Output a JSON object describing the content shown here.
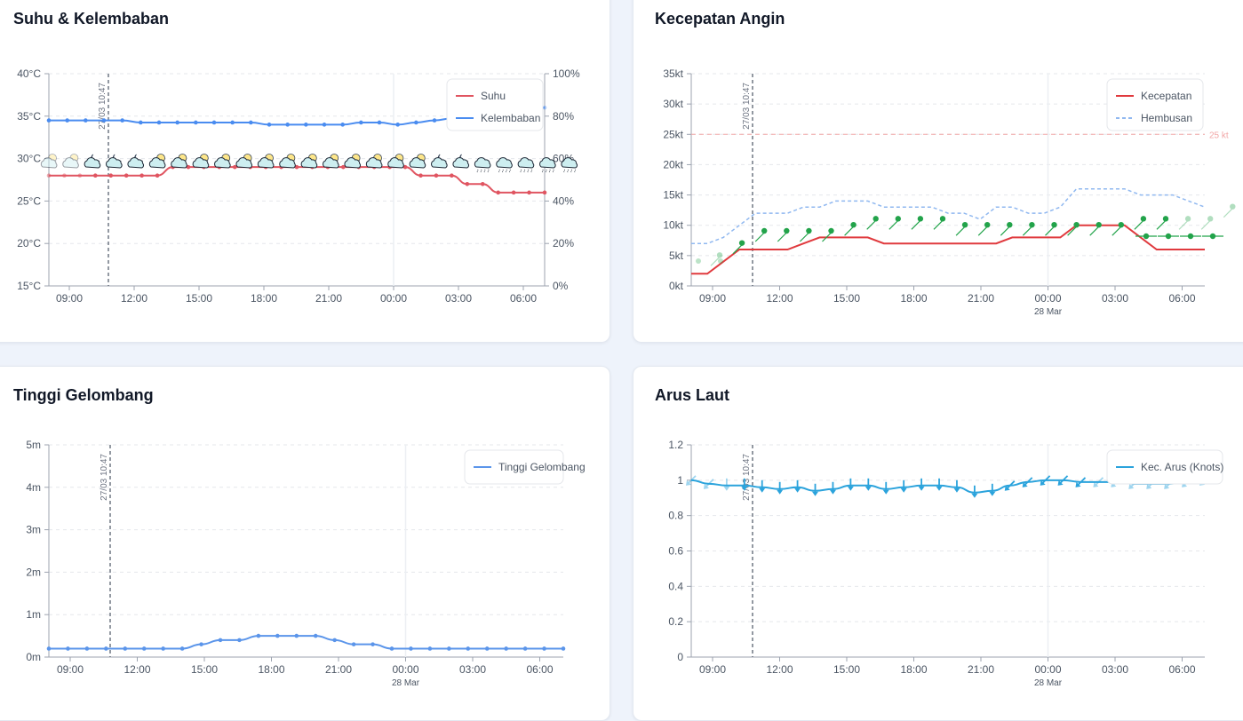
{
  "chart_data": [
    {
      "id": "temp",
      "type": "line",
      "title": "Suhu & Kelembaban",
      "x_ticks": [
        "09:00",
        "12:00",
        "15:00",
        "18:00",
        "21:00",
        "00:00",
        "03:00",
        "06:00"
      ],
      "y_left": {
        "ticks": [
          "15°C",
          "20°C",
          "25°C",
          "30°C",
          "35°C",
          "40°C"
        ],
        "range": [
          15,
          40
        ]
      },
      "y_right": {
        "ticks": [
          "0%",
          "20%",
          "40%",
          "60%",
          "80%",
          "100%"
        ],
        "range": [
          0,
          100
        ]
      },
      "now_label": "27/03 10:47",
      "legend": [
        "Suhu",
        "Kelembaban"
      ],
      "series": [
        {
          "name": "Suhu",
          "color": "#e05561",
          "axis": "left",
          "values": [
            28,
            28,
            28,
            28,
            28,
            28,
            28,
            28,
            29,
            29,
            29,
            29,
            29,
            29,
            29,
            29,
            29,
            29,
            29,
            29,
            29,
            29,
            29,
            29,
            28,
            28,
            28,
            27,
            27,
            26,
            26,
            26,
            26
          ]
        },
        {
          "name": "Kelembaban",
          "color": "#4a8cf0",
          "axis": "right",
          "values": [
            78,
            78,
            78,
            78,
            78,
            77,
            77,
            77,
            77,
            77,
            77,
            77,
            76,
            76,
            76,
            76,
            76,
            77,
            77,
            76,
            77,
            78,
            79,
            80,
            81,
            82,
            83,
            84
          ]
        }
      ],
      "weather_icons": [
        "partly-cloudy",
        "partly-cloudy",
        "partly-cloudy-night",
        "partly-cloudy-night",
        "partly-cloudy-night",
        "partly-cloudy",
        "partly-cloudy",
        "partly-cloudy",
        "partly-cloudy",
        "partly-cloudy",
        "partly-cloudy",
        "partly-cloudy",
        "partly-cloudy",
        "partly-cloudy",
        "partly-cloudy",
        "partly-cloudy",
        "partly-cloudy",
        "partly-cloudy",
        "partly-cloudy-night",
        "partly-cloudy-night",
        "rain",
        "rain",
        "rain",
        "rain",
        "rain"
      ]
    },
    {
      "id": "wind",
      "type": "line",
      "title": "Kecepatan Angin",
      "x_ticks": [
        "09:00",
        "12:00",
        "15:00",
        "18:00",
        "21:00",
        "00:00",
        "03:00",
        "06:00"
      ],
      "date_label": "28 Mar",
      "y_left": {
        "ticks": [
          "0kt",
          "5kt",
          "10kt",
          "15kt",
          "20kt",
          "25kt",
          "30kt",
          "35kt"
        ],
        "range": [
          0,
          35
        ]
      },
      "now_label": "27/03 10:47",
      "threshold": {
        "value": 25,
        "label": "25 kt"
      },
      "legend": [
        "Kecepatan",
        "Hembusan"
      ],
      "series": [
        {
          "name": "Kecepatan",
          "color": "#e03a3e",
          "values": [
            2,
            2,
            4,
            6,
            6,
            6,
            6,
            7,
            8,
            8,
            8,
            8,
            7,
            7,
            7,
            7,
            7,
            7,
            7,
            7,
            8,
            8,
            8,
            8,
            10,
            10,
            10,
            10,
            8,
            6,
            6,
            6,
            6
          ]
        },
        {
          "name": "Hembusan",
          "color": "#90b8f0",
          "values": [
            7,
            7,
            8,
            10,
            12,
            12,
            12,
            13,
            13,
            14,
            14,
            14,
            13,
            13,
            13,
            13,
            12,
            12,
            11,
            13,
            13,
            12,
            12,
            13,
            16,
            16,
            16,
            16,
            15,
            15,
            15,
            14,
            13
          ]
        }
      ]
    },
    {
      "id": "wave",
      "type": "line",
      "title": "Tinggi Gelombang",
      "x_ticks": [
        "09:00",
        "12:00",
        "15:00",
        "18:00",
        "21:00",
        "00:00",
        "03:00",
        "06:00"
      ],
      "date_label": "28 Mar",
      "y_left": {
        "ticks": [
          "0m",
          "1m",
          "2m",
          "3m",
          "4m",
          "5m"
        ],
        "range": [
          0,
          5
        ]
      },
      "now_label": "27/03 10:47",
      "legend": [
        "Tinggi Gelombang"
      ],
      "series": [
        {
          "name": "Tinggi Gelombang",
          "color": "#5b95ea",
          "values": [
            0.2,
            0.2,
            0.2,
            0.2,
            0.2,
            0.2,
            0.2,
            0.2,
            0.3,
            0.4,
            0.4,
            0.5,
            0.5,
            0.5,
            0.5,
            0.4,
            0.3,
            0.3,
            0.2,
            0.2,
            0.2,
            0.2,
            0.2,
            0.2,
            0.2,
            0.2,
            0.2,
            0.2
          ]
        }
      ]
    },
    {
      "id": "current",
      "type": "line",
      "title": "Arus Laut",
      "x_ticks": [
        "09:00",
        "12:00",
        "15:00",
        "18:00",
        "21:00",
        "00:00",
        "03:00",
        "06:00"
      ],
      "date_label": "28 Mar",
      "y_left": {
        "ticks": [
          "0",
          "0.2",
          "0.4",
          "0.6",
          "0.8",
          "1",
          "1.2"
        ],
        "range": [
          0,
          1.2
        ]
      },
      "now_label": "27/03 10:47",
      "legend": [
        "Kec. Arus (Knots)"
      ],
      "series": [
        {
          "name": "Kec. Arus (Knots)",
          "color": "#2ba3dc",
          "values": [
            1.0,
            0.98,
            0.97,
            0.97,
            0.96,
            0.95,
            0.96,
            0.94,
            0.95,
            0.97,
            0.97,
            0.95,
            0.96,
            0.97,
            0.97,
            0.96,
            0.93,
            0.94,
            0.97,
            0.99,
            1.0,
            1.0,
            0.99,
            0.99,
            0.99,
            0.98,
            0.98,
            0.98,
            0.99,
            1.0
          ]
        }
      ]
    }
  ],
  "colors": {
    "arrow_green": "#22a34a",
    "grid": "#e5e7eb",
    "now_line": "#4b5563",
    "threshold": "#f2a7a7"
  }
}
